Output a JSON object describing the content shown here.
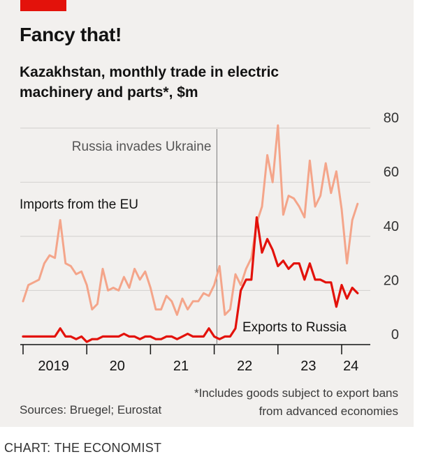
{
  "header": {
    "title": "Fancy that!",
    "subtitle": "Kazakhstan, monthly trade in electric machinery and parts*, $m"
  },
  "footer": {
    "source": "Sources: Bruegel; Eurostat",
    "footnote": "*Includes goods subject to export bans from advanced economies",
    "credit": "CHART: THE ECONOMIST"
  },
  "colors": {
    "eu_imports": "#f4a58a",
    "russia_exports": "#e3120b",
    "brand_red": "#e3120b"
  },
  "chart_data": {
    "type": "line",
    "y_axis_position": "right",
    "ylim": [
      0,
      80
    ],
    "y_ticks": [
      "0",
      "20",
      "40",
      "60",
      "80"
    ],
    "x_tick_labels": [
      "2019",
      "20",
      "21",
      "22",
      "23",
      "24"
    ],
    "x_start": "2019-01",
    "annotation": "Russia invades Ukraine",
    "annotation_date": "2022-02",
    "grid": true,
    "series": [
      {
        "name": "Imports from the EU",
        "values": [
          16,
          22,
          23,
          24,
          30,
          33,
          32,
          46,
          30,
          29,
          26,
          27,
          22,
          13,
          15,
          28,
          20,
          21,
          20,
          25,
          21,
          28,
          24,
          27,
          21,
          13,
          13,
          18,
          16,
          11,
          17,
          13,
          16,
          16,
          19,
          18,
          22,
          29,
          11,
          13,
          26,
          22,
          28,
          32,
          45,
          51,
          70,
          60,
          81,
          48,
          55,
          54,
          51,
          47,
          68,
          51,
          55,
          67,
          56,
          64,
          50,
          30,
          46,
          52
        ]
      },
      {
        "name": "Exports to Russia",
        "values": [
          3,
          3,
          3,
          3,
          3,
          3,
          3,
          6,
          3,
          3,
          2,
          3,
          1,
          2,
          2,
          3,
          3,
          3,
          3,
          4,
          3,
          3,
          2,
          3,
          3,
          2,
          2,
          3,
          3,
          2,
          3,
          4,
          3,
          3,
          3,
          6,
          3,
          2,
          3,
          3,
          6,
          20,
          24,
          24,
          47,
          34,
          39,
          35,
          29,
          31,
          28,
          30,
          30,
          24,
          30,
          24,
          24,
          23,
          23,
          14,
          22,
          17,
          21,
          19
        ]
      }
    ]
  }
}
